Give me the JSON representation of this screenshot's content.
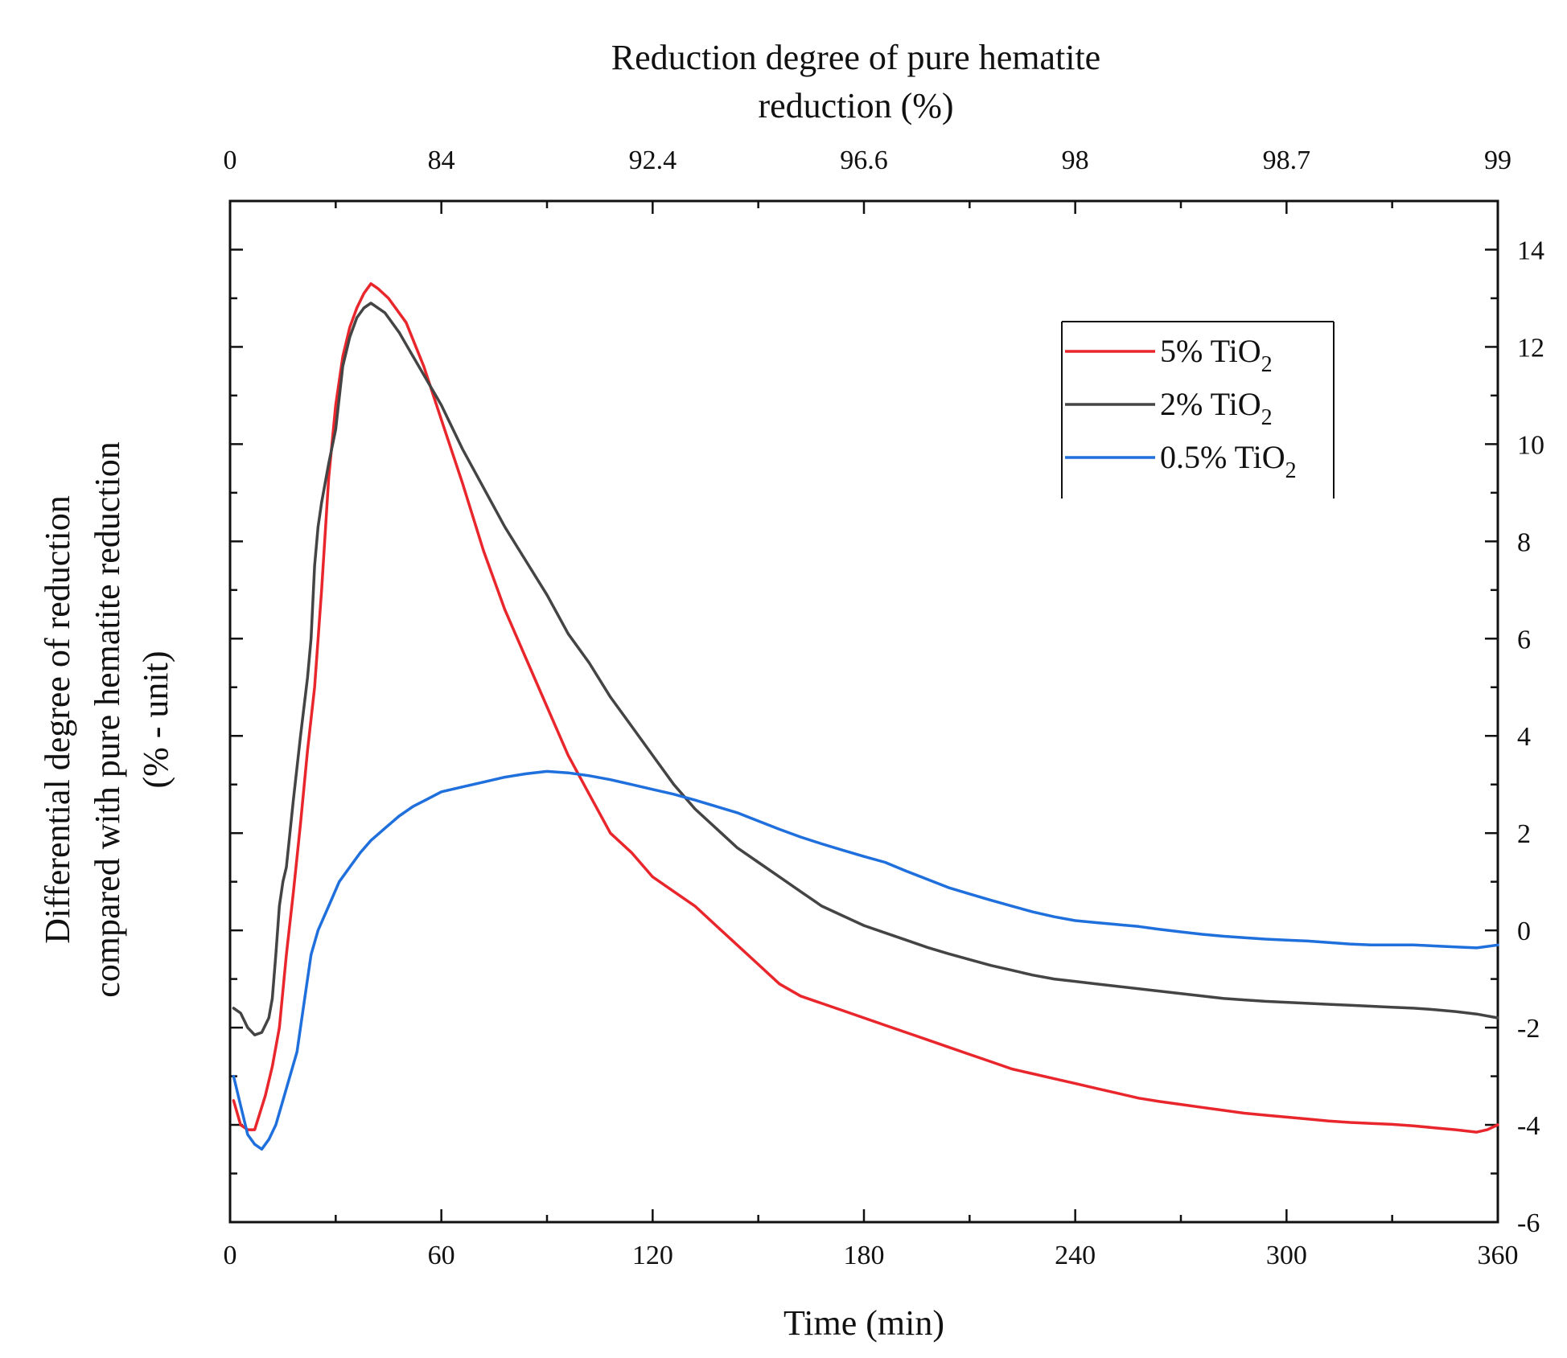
{
  "chart_data": {
    "type": "line",
    "title": "",
    "xlabel": "Time (min)",
    "ylabel_lines": [
      "Differential degree of reduction",
      "compared with pure hematite reduction",
      "(% - unit)"
    ],
    "top_axis_title_lines": [
      "Reduction degree of pure hematite",
      "reduction (%)"
    ],
    "xlim": [
      0,
      360
    ],
    "ylim": [
      -6,
      15
    ],
    "x_ticks": [
      0,
      60,
      120,
      180,
      240,
      300,
      360
    ],
    "y_ticks": [
      -6,
      -4,
      -2,
      0,
      2,
      4,
      6,
      8,
      10,
      12,
      14
    ],
    "top_axis_ticks": [
      {
        "x": 0,
        "label": "0"
      },
      {
        "x": 60,
        "label": "84"
      },
      {
        "x": 120,
        "label": "92.4"
      },
      {
        "x": 180,
        "label": "96.6"
      },
      {
        "x": 240,
        "label": "98"
      },
      {
        "x": 300,
        "label": "98.7"
      },
      {
        "x": 360,
        "label": "99"
      }
    ],
    "legend_position": "upper-right",
    "series": [
      {
        "name": "5% TiO2",
        "label_main": "5% TiO",
        "label_sub": "2",
        "color": "#e8262c",
        "points": [
          [
            1,
            -3.5
          ],
          [
            3,
            -4.0
          ],
          [
            5,
            -4.1
          ],
          [
            7,
            -4.1
          ],
          [
            10,
            -3.4
          ],
          [
            12,
            -2.8
          ],
          [
            14,
            -2.0
          ],
          [
            16,
            -0.5
          ],
          [
            18,
            0.8
          ],
          [
            20,
            2.2
          ],
          [
            22,
            3.7
          ],
          [
            24,
            5.0
          ],
          [
            26,
            7.0
          ],
          [
            28,
            9.3
          ],
          [
            30,
            10.8
          ],
          [
            32,
            11.8
          ],
          [
            34,
            12.4
          ],
          [
            36,
            12.8
          ],
          [
            38,
            13.1
          ],
          [
            40,
            13.3
          ],
          [
            42,
            13.2
          ],
          [
            45,
            13.0
          ],
          [
            50,
            12.5
          ],
          [
            55,
            11.6
          ],
          [
            60,
            10.5
          ],
          [
            66,
            9.2
          ],
          [
            72,
            7.8
          ],
          [
            78,
            6.6
          ],
          [
            84,
            5.6
          ],
          [
            90,
            4.6
          ],
          [
            96,
            3.6
          ],
          [
            102,
            2.8
          ],
          [
            108,
            2.0
          ],
          [
            114,
            1.6
          ],
          [
            120,
            1.1
          ],
          [
            126,
            0.8
          ],
          [
            132,
            0.5
          ],
          [
            138,
            0.1
          ],
          [
            144,
            -0.3
          ],
          [
            150,
            -0.7
          ],
          [
            156,
            -1.1
          ],
          [
            162,
            -1.35
          ],
          [
            168,
            -1.5
          ],
          [
            174,
            -1.65
          ],
          [
            180,
            -1.8
          ],
          [
            186,
            -1.95
          ],
          [
            192,
            -2.1
          ],
          [
            198,
            -2.25
          ],
          [
            204,
            -2.4
          ],
          [
            210,
            -2.55
          ],
          [
            216,
            -2.7
          ],
          [
            222,
            -2.85
          ],
          [
            228,
            -2.95
          ],
          [
            234,
            -3.05
          ],
          [
            240,
            -3.15
          ],
          [
            246,
            -3.25
          ],
          [
            252,
            -3.35
          ],
          [
            258,
            -3.45
          ],
          [
            264,
            -3.52
          ],
          [
            270,
            -3.58
          ],
          [
            276,
            -3.64
          ],
          [
            282,
            -3.7
          ],
          [
            288,
            -3.76
          ],
          [
            294,
            -3.8
          ],
          [
            300,
            -3.84
          ],
          [
            306,
            -3.88
          ],
          [
            312,
            -3.92
          ],
          [
            318,
            -3.95
          ],
          [
            324,
            -3.97
          ],
          [
            330,
            -3.99
          ],
          [
            336,
            -4.02
          ],
          [
            342,
            -4.06
          ],
          [
            348,
            -4.1
          ],
          [
            354,
            -4.15
          ],
          [
            357,
            -4.1
          ],
          [
            360,
            -4.0
          ]
        ]
      },
      {
        "name": "2% TiO2",
        "label_main": "2% TiO",
        "label_sub": "2",
        "color": "#444444",
        "points": [
          [
            1,
            -1.6
          ],
          [
            3,
            -1.7
          ],
          [
            5,
            -2.0
          ],
          [
            7,
            -2.15
          ],
          [
            9,
            -2.1
          ],
          [
            11,
            -1.8
          ],
          [
            12,
            -1.4
          ],
          [
            13,
            -0.5
          ],
          [
            14,
            0.5
          ],
          [
            15,
            1.0
          ],
          [
            16,
            1.3
          ],
          [
            18,
            2.7
          ],
          [
            20,
            4.0
          ],
          [
            22,
            5.2
          ],
          [
            23,
            6.0
          ],
          [
            24,
            7.5
          ],
          [
            25,
            8.3
          ],
          [
            26,
            8.8
          ],
          [
            28,
            9.6
          ],
          [
            30,
            10.3
          ],
          [
            32,
            11.6
          ],
          [
            34,
            12.2
          ],
          [
            36,
            12.6
          ],
          [
            38,
            12.8
          ],
          [
            40,
            12.9
          ],
          [
            44,
            12.7
          ],
          [
            48,
            12.3
          ],
          [
            52,
            11.8
          ],
          [
            56,
            11.3
          ],
          [
            60,
            10.8
          ],
          [
            66,
            9.9
          ],
          [
            72,
            9.1
          ],
          [
            78,
            8.3
          ],
          [
            84,
            7.6
          ],
          [
            90,
            6.9
          ],
          [
            96,
            6.1
          ],
          [
            102,
            5.5
          ],
          [
            108,
            4.8
          ],
          [
            114,
            4.2
          ],
          [
            120,
            3.6
          ],
          [
            126,
            3.0
          ],
          [
            132,
            2.5
          ],
          [
            138,
            2.1
          ],
          [
            144,
            1.7
          ],
          [
            150,
            1.4
          ],
          [
            156,
            1.1
          ],
          [
            162,
            0.8
          ],
          [
            168,
            0.5
          ],
          [
            174,
            0.3
          ],
          [
            180,
            0.1
          ],
          [
            186,
            -0.05
          ],
          [
            192,
            -0.2
          ],
          [
            198,
            -0.35
          ],
          [
            204,
            -0.48
          ],
          [
            210,
            -0.6
          ],
          [
            216,
            -0.72
          ],
          [
            222,
            -0.82
          ],
          [
            228,
            -0.92
          ],
          [
            234,
            -1.0
          ],
          [
            240,
            -1.05
          ],
          [
            246,
            -1.1
          ],
          [
            252,
            -1.15
          ],
          [
            258,
            -1.2
          ],
          [
            264,
            -1.25
          ],
          [
            270,
            -1.3
          ],
          [
            276,
            -1.35
          ],
          [
            282,
            -1.4
          ],
          [
            288,
            -1.43
          ],
          [
            294,
            -1.46
          ],
          [
            300,
            -1.48
          ],
          [
            306,
            -1.5
          ],
          [
            312,
            -1.52
          ],
          [
            318,
            -1.54
          ],
          [
            324,
            -1.56
          ],
          [
            330,
            -1.58
          ],
          [
            336,
            -1.6
          ],
          [
            342,
            -1.63
          ],
          [
            348,
            -1.67
          ],
          [
            354,
            -1.72
          ],
          [
            360,
            -1.8
          ]
        ]
      },
      {
        "name": "0.5% TiO2",
        "label_main": "0.5% TiO",
        "label_sub": "2",
        "color": "#1f6fdc",
        "points": [
          [
            1,
            -3.0
          ],
          [
            3,
            -3.6
          ],
          [
            5,
            -4.2
          ],
          [
            7,
            -4.4
          ],
          [
            9,
            -4.5
          ],
          [
            11,
            -4.3
          ],
          [
            13,
            -4.0
          ],
          [
            15,
            -3.5
          ],
          [
            17,
            -3.0
          ],
          [
            19,
            -2.5
          ],
          [
            21,
            -1.5
          ],
          [
            23,
            -0.5
          ],
          [
            25,
            0.0
          ],
          [
            28,
            0.5
          ],
          [
            31,
            1.0
          ],
          [
            34,
            1.3
          ],
          [
            37,
            1.6
          ],
          [
            40,
            1.85
          ],
          [
            44,
            2.1
          ],
          [
            48,
            2.35
          ],
          [
            52,
            2.55
          ],
          [
            56,
            2.7
          ],
          [
            60,
            2.85
          ],
          [
            66,
            2.95
          ],
          [
            72,
            3.05
          ],
          [
            78,
            3.15
          ],
          [
            84,
            3.22
          ],
          [
            90,
            3.27
          ],
          [
            96,
            3.24
          ],
          [
            102,
            3.18
          ],
          [
            108,
            3.1
          ],
          [
            114,
            3.0
          ],
          [
            120,
            2.9
          ],
          [
            126,
            2.8
          ],
          [
            132,
            2.68
          ],
          [
            138,
            2.55
          ],
          [
            144,
            2.42
          ],
          [
            150,
            2.25
          ],
          [
            156,
            2.08
          ],
          [
            162,
            1.92
          ],
          [
            168,
            1.78
          ],
          [
            174,
            1.65
          ],
          [
            180,
            1.52
          ],
          [
            186,
            1.4
          ],
          [
            192,
            1.22
          ],
          [
            198,
            1.05
          ],
          [
            204,
            0.88
          ],
          [
            210,
            0.75
          ],
          [
            216,
            0.62
          ],
          [
            222,
            0.5
          ],
          [
            228,
            0.38
          ],
          [
            234,
            0.28
          ],
          [
            240,
            0.2
          ],
          [
            246,
            0.16
          ],
          [
            252,
            0.12
          ],
          [
            258,
            0.08
          ],
          [
            264,
            0.02
          ],
          [
            270,
            -0.03
          ],
          [
            276,
            -0.08
          ],
          [
            282,
            -0.12
          ],
          [
            288,
            -0.15
          ],
          [
            294,
            -0.18
          ],
          [
            300,
            -0.2
          ],
          [
            306,
            -0.22
          ],
          [
            312,
            -0.25
          ],
          [
            318,
            -0.28
          ],
          [
            324,
            -0.3
          ],
          [
            330,
            -0.3
          ],
          [
            336,
            -0.3
          ],
          [
            342,
            -0.32
          ],
          [
            348,
            -0.34
          ],
          [
            354,
            -0.36
          ],
          [
            357,
            -0.33
          ],
          [
            360,
            -0.3
          ]
        ]
      }
    ]
  }
}
